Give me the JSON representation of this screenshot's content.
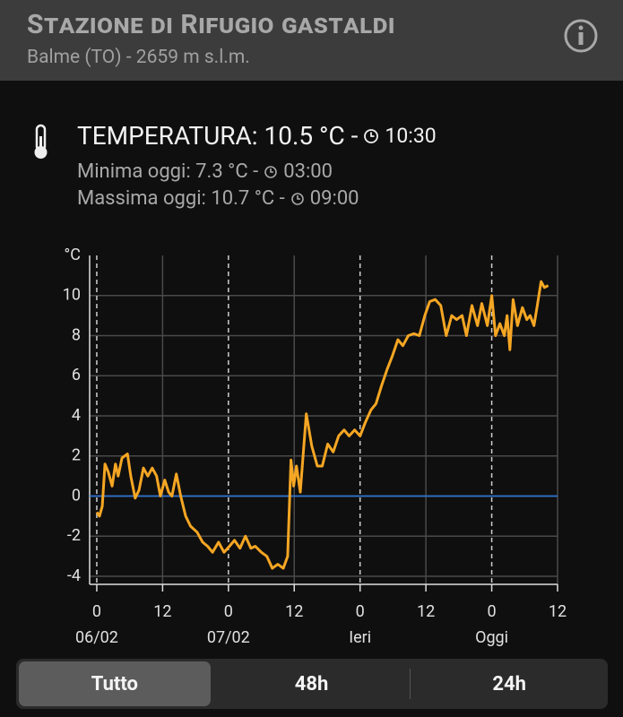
{
  "header": {
    "title": "Stazione di Rifugio gastaldi",
    "subtitle": "Balme (TO) - 2659 m s.l.m."
  },
  "readings": {
    "current": {
      "text": "TEMPERATURA: 10.5 °C -",
      "time": "10:30"
    },
    "min": {
      "text": "Minima oggi: 7.3 °C -",
      "time": "03:00"
    },
    "max": {
      "text": "Massima oggi: 10.7 °C -",
      "time": "09:00"
    }
  },
  "chart_data": {
    "type": "line",
    "y_unit": "°C",
    "x": [
      0,
      0.5,
      1.0,
      1.5,
      2.1,
      2.8,
      3.4,
      3.9,
      4.6,
      5.6,
      6.2,
      7.0,
      7.7,
      8.5,
      9.3,
      10.1,
      10.9,
      11.6,
      12.4,
      13.1,
      13.7,
      14.5,
      15.3,
      16.2,
      17.1,
      18.3,
      19.3,
      20.2,
      21.1,
      22.2,
      23.2,
      24.2,
      25.1,
      26.1,
      27.1,
      28.1,
      28.9,
      30.0,
      31.0,
      32.0,
      33.0,
      34.0,
      34.8,
      35.4,
      35.9,
      36.4,
      37.1,
      38.2,
      39.2,
      40.2,
      41.1,
      42.1,
      43.1,
      44.1,
      45.1,
      46.0,
      47.0,
      48.0,
      49.0,
      50.0,
      50.9,
      51.9,
      52.9,
      53.9,
      54.9,
      55.8,
      56.8,
      57.8,
      58.8,
      59.8,
      60.7,
      61.7,
      62.7,
      63.7,
      64.7,
      65.6,
      66.6,
      67.4,
      68.4,
      69.4,
      70.2,
      71.2,
      72.0,
      72.7,
      73.5,
      74.3,
      74.8,
      75.3,
      75.9,
      76.7,
      77.6,
      78.4,
      79.0,
      79.7,
      80.3,
      81.0,
      81.6,
      82.3
    ],
    "series": [
      {
        "name": "Temperatura",
        "color": "#f5a623",
        "values": [
          -0.8,
          -1.0,
          -0.5,
          1.6,
          1.2,
          0.5,
          1.6,
          1.0,
          1.9,
          2.1,
          1.0,
          -0.1,
          0.3,
          1.4,
          1.0,
          1.4,
          1.0,
          0.0,
          0.8,
          0.2,
          0.0,
          1.1,
          0.0,
          -1.0,
          -1.5,
          -1.8,
          -2.3,
          -2.5,
          -2.8,
          -2.3,
          -2.8,
          -2.5,
          -2.2,
          -2.6,
          -2.0,
          -2.6,
          -2.5,
          -2.8,
          -3.0,
          -3.6,
          -3.4,
          -3.6,
          -3.0,
          1.8,
          0.5,
          1.5,
          0.2,
          4.1,
          2.5,
          1.5,
          1.5,
          2.6,
          2.2,
          3.0,
          3.3,
          3.0,
          3.3,
          3.0,
          3.7,
          4.3,
          4.6,
          5.5,
          6.3,
          7.0,
          7.8,
          7.5,
          8.0,
          8.1,
          8.0,
          9.0,
          9.7,
          9.8,
          9.5,
          8.0,
          9.0,
          8.8,
          9.0,
          8.0,
          9.5,
          8.5,
          9.6,
          8.5,
          10.0,
          8.0,
          8.6,
          8.0,
          9.0,
          7.3,
          9.8,
          8.5,
          9.4,
          8.8,
          9.0,
          8.5,
          9.5,
          10.7,
          10.4,
          10.5
        ]
      }
    ],
    "xlim": [
      -1.3,
      84
    ],
    "xticks": [
      0,
      12,
      {
        "value": 24,
        "label": "0"
      },
      {
        "value": 36,
        "label": "12"
      },
      {
        "value": 48,
        "label": "0"
      },
      {
        "value": 60,
        "label": "12"
      },
      {
        "value": 72,
        "label": "0"
      },
      {
        "value": 84,
        "label": "12"
      }
    ],
    "day_labels": [
      {
        "value": 0,
        "label": "06/02"
      },
      {
        "value": 24,
        "label": "07/02"
      },
      {
        "value": 48,
        "label": "Ieri"
      },
      {
        "value": 72,
        "label": "Oggi"
      }
    ],
    "ylim": [
      -4.4,
      12
    ],
    "yticks": [
      -4,
      -2,
      0,
      2,
      4,
      6,
      8,
      10
    ],
    "grid": true,
    "reference_lines": [
      {
        "value": 0,
        "color": "#2f74d0"
      }
    ]
  },
  "tabs": [
    {
      "label": "Tutto",
      "selected": true
    },
    {
      "label": "48h",
      "selected": false
    },
    {
      "label": "24h",
      "selected": false
    }
  ]
}
